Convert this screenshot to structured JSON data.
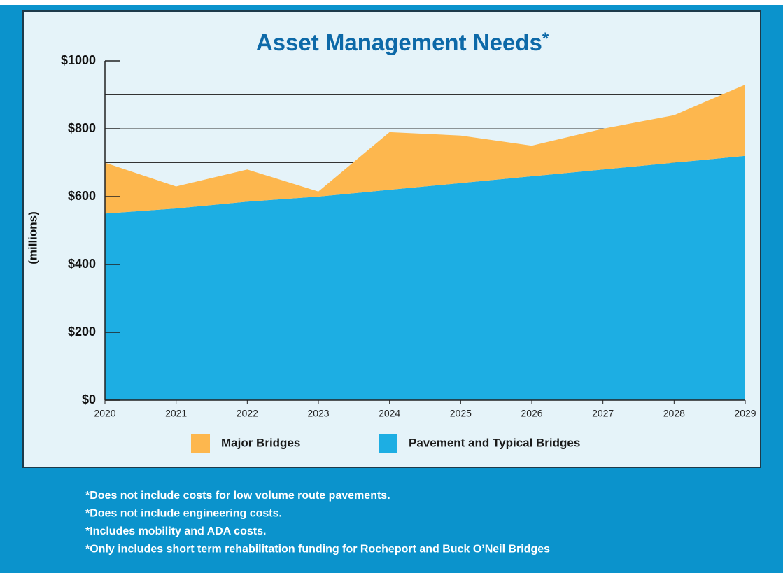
{
  "chart_data": {
    "type": "stacked_area",
    "title": "Asset Management Needs",
    "title_mark": "*",
    "y_label": "(millions)",
    "x": [
      2020,
      2021,
      2022,
      2023,
      2024,
      2025,
      2026,
      2027,
      2028,
      2029
    ],
    "xlim": [
      2020,
      2029
    ],
    "series": [
      {
        "name": "Pavement and Typical Bridges",
        "color": "#1daee3",
        "values": [
          550,
          565,
          585,
          600,
          620,
          640,
          660,
          680,
          700,
          720
        ]
      },
      {
        "name": "Major Bridges",
        "color": "#fdb74e",
        "values": [
          150,
          65,
          95,
          15,
          170,
          140,
          90,
          120,
          140,
          210
        ]
      }
    ],
    "ylim": [
      0,
      1000
    ],
    "yticks": [
      {
        "value": 0,
        "label": "$0"
      },
      {
        "value": 200,
        "label": "$200"
      },
      {
        "value": 400,
        "label": "$400"
      },
      {
        "value": 600,
        "label": "$600"
      },
      {
        "value": 800,
        "label": "$800"
      },
      {
        "value": 1000,
        "label": "$1000"
      }
    ],
    "grid_lines": [
      700,
      800,
      900
    ],
    "notes": [
      "*Does not include costs for low volume route pavements.",
      "*Does not include engineering costs.",
      "*Includes mobility and ADA costs.",
      "*Only includes short term rehabilitation funding for Rocheport and Buck O’Neil Bridges"
    ]
  }
}
